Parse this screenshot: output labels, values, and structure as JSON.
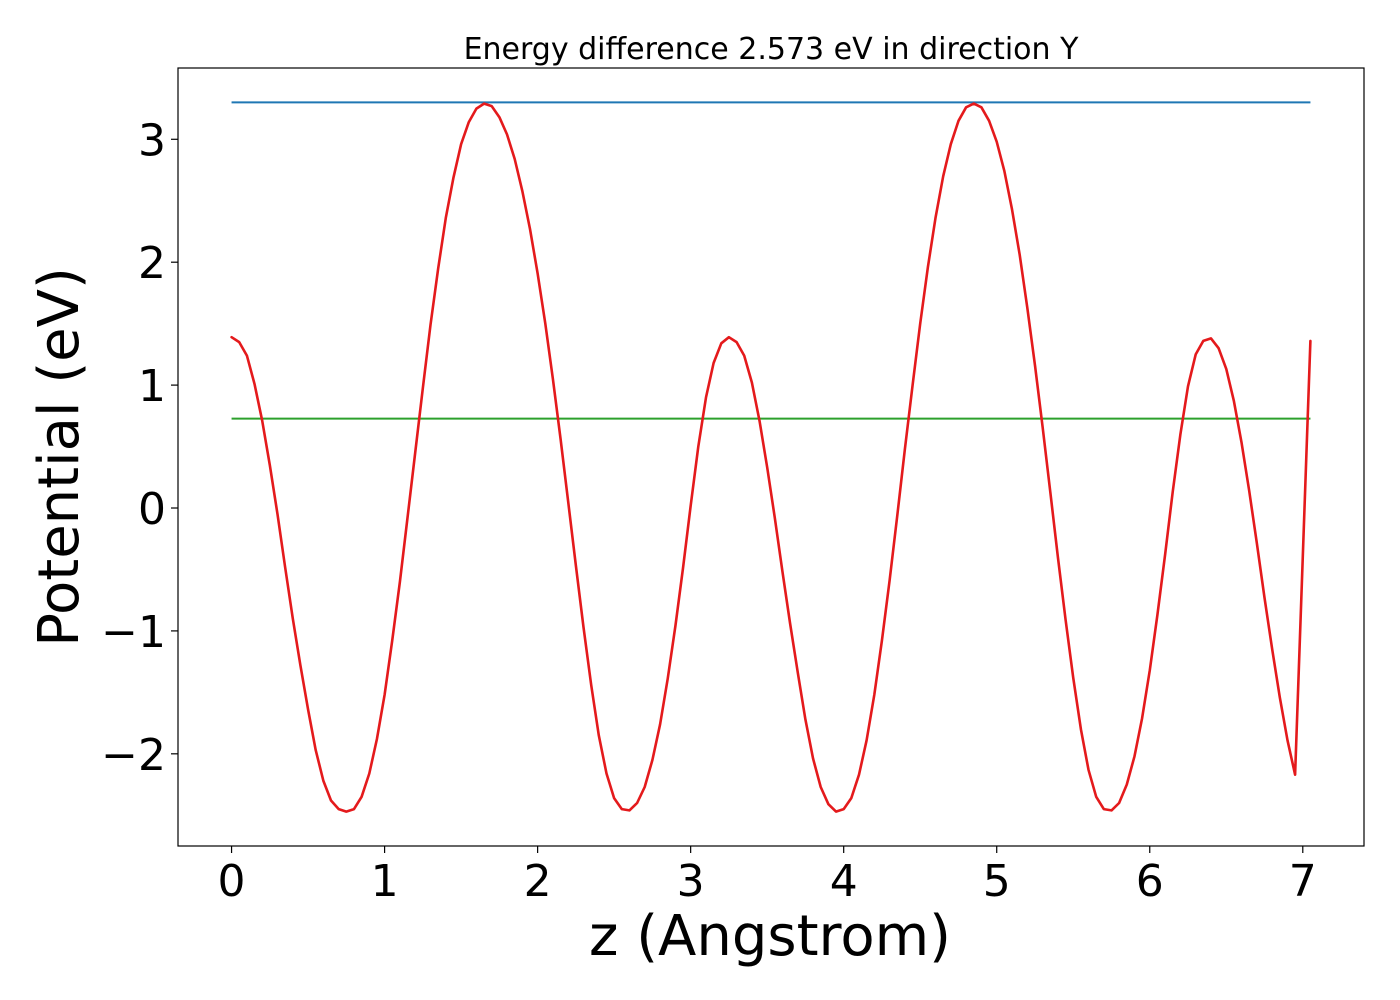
{
  "chart_data": {
    "type": "line",
    "title": "Energy difference 2.573 eV in direction Y",
    "xlabel": "z (Angstrom)",
    "ylabel": "Potential (eV)",
    "xlim": [
      -0.35,
      7.4
    ],
    "ylim": [
      -2.75,
      3.58
    ],
    "xticks": [
      0,
      1,
      2,
      3,
      4,
      5,
      6,
      7
    ],
    "xtick_labels": [
      "0",
      "1",
      "2",
      "3",
      "4",
      "5",
      "6",
      "7"
    ],
    "yticks": [
      -2,
      -1,
      0,
      1,
      2,
      3
    ],
    "ytick_labels": [
      "−2",
      "−1",
      "0",
      "1",
      "2",
      "3"
    ],
    "grid": false,
    "legend": "none",
    "colors": {
      "potential": "#e41a1c",
      "max_line": "#1f77b4",
      "avg_line": "#2ca02c"
    },
    "series": [
      {
        "values": [
          {
            "x": 0.0,
            "y": 1.39
          },
          {
            "x": 0.05,
            "y": 1.35
          },
          {
            "x": 0.1,
            "y": 1.24
          },
          {
            "x": 0.15,
            "y": 1.01
          },
          {
            "x": 0.2,
            "y": 0.71
          },
          {
            "x": 0.25,
            "y": 0.35
          },
          {
            "x": 0.3,
            "y": -0.05
          },
          {
            "x": 0.35,
            "y": -0.48
          },
          {
            "x": 0.4,
            "y": -0.9
          },
          {
            "x": 0.45,
            "y": -1.28
          },
          {
            "x": 0.5,
            "y": -1.64
          },
          {
            "x": 0.55,
            "y": -1.97
          },
          {
            "x": 0.6,
            "y": -2.22
          },
          {
            "x": 0.65,
            "y": -2.38
          },
          {
            "x": 0.7,
            "y": -2.45
          },
          {
            "x": 0.75,
            "y": -2.47
          },
          {
            "x": 0.8,
            "y": -2.45
          },
          {
            "x": 0.85,
            "y": -2.35
          },
          {
            "x": 0.9,
            "y": -2.16
          },
          {
            "x": 0.95,
            "y": -1.88
          },
          {
            "x": 1.0,
            "y": -1.52
          },
          {
            "x": 1.05,
            "y": -1.08
          },
          {
            "x": 1.1,
            "y": -0.6
          },
          {
            "x": 1.15,
            "y": -0.08
          },
          {
            "x": 1.2,
            "y": 0.45
          },
          {
            "x": 1.25,
            "y": 0.98
          },
          {
            "x": 1.3,
            "y": 1.49
          },
          {
            "x": 1.35,
            "y": 1.95
          },
          {
            "x": 1.4,
            "y": 2.36
          },
          {
            "x": 1.45,
            "y": 2.69
          },
          {
            "x": 1.5,
            "y": 2.96
          },
          {
            "x": 1.55,
            "y": 3.14
          },
          {
            "x": 1.6,
            "y": 3.25
          },
          {
            "x": 1.65,
            "y": 3.29
          },
          {
            "x": 1.7,
            "y": 3.27
          },
          {
            "x": 1.75,
            "y": 3.18
          },
          {
            "x": 1.8,
            "y": 3.04
          },
          {
            "x": 1.85,
            "y": 2.84
          },
          {
            "x": 1.9,
            "y": 2.58
          },
          {
            "x": 1.95,
            "y": 2.27
          },
          {
            "x": 2.0,
            "y": 1.91
          },
          {
            "x": 2.05,
            "y": 1.5
          },
          {
            "x": 2.1,
            "y": 1.05
          },
          {
            "x": 2.15,
            "y": 0.56
          },
          {
            "x": 2.2,
            "y": 0.05
          },
          {
            "x": 2.25,
            "y": -0.47
          },
          {
            "x": 2.3,
            "y": -0.97
          },
          {
            "x": 2.35,
            "y": -1.44
          },
          {
            "x": 2.4,
            "y": -1.85
          },
          {
            "x": 2.45,
            "y": -2.16
          },
          {
            "x": 2.5,
            "y": -2.36
          },
          {
            "x": 2.55,
            "y": -2.45
          },
          {
            "x": 2.6,
            "y": -2.46
          },
          {
            "x": 2.65,
            "y": -2.4
          },
          {
            "x": 2.7,
            "y": -2.27
          },
          {
            "x": 2.75,
            "y": -2.05
          },
          {
            "x": 2.8,
            "y": -1.76
          },
          {
            "x": 2.85,
            "y": -1.39
          },
          {
            "x": 2.9,
            "y": -0.96
          },
          {
            "x": 2.95,
            "y": -0.49
          },
          {
            "x": 3.0,
            "y": 0.02
          },
          {
            "x": 3.05,
            "y": 0.5
          },
          {
            "x": 3.1,
            "y": 0.9
          },
          {
            "x": 3.15,
            "y": 1.18
          },
          {
            "x": 3.2,
            "y": 1.34
          },
          {
            "x": 3.25,
            "y": 1.39
          },
          {
            "x": 3.3,
            "y": 1.35
          },
          {
            "x": 3.35,
            "y": 1.24
          },
          {
            "x": 3.4,
            "y": 1.02
          },
          {
            "x": 3.45,
            "y": 0.71
          },
          {
            "x": 3.5,
            "y": 0.33
          },
          {
            "x": 3.55,
            "y": -0.08
          },
          {
            "x": 3.6,
            "y": -0.52
          },
          {
            "x": 3.65,
            "y": -0.94
          },
          {
            "x": 3.7,
            "y": -1.34
          },
          {
            "x": 3.75,
            "y": -1.72
          },
          {
            "x": 3.8,
            "y": -2.04
          },
          {
            "x": 3.85,
            "y": -2.27
          },
          {
            "x": 3.9,
            "y": -2.41
          },
          {
            "x": 3.95,
            "y": -2.47
          },
          {
            "x": 4.0,
            "y": -2.45
          },
          {
            "x": 4.05,
            "y": -2.36
          },
          {
            "x": 4.1,
            "y": -2.17
          },
          {
            "x": 4.15,
            "y": -1.89
          },
          {
            "x": 4.2,
            "y": -1.52
          },
          {
            "x": 4.25,
            "y": -1.08
          },
          {
            "x": 4.3,
            "y": -0.59
          },
          {
            "x": 4.35,
            "y": -0.06
          },
          {
            "x": 4.4,
            "y": 0.48
          },
          {
            "x": 4.45,
            "y": 1.0
          },
          {
            "x": 4.5,
            "y": 1.5
          },
          {
            "x": 4.55,
            "y": 1.96
          },
          {
            "x": 4.6,
            "y": 2.36
          },
          {
            "x": 4.65,
            "y": 2.7
          },
          {
            "x": 4.7,
            "y": 2.96
          },
          {
            "x": 4.75,
            "y": 3.15
          },
          {
            "x": 4.8,
            "y": 3.26
          },
          {
            "x": 4.85,
            "y": 3.29
          },
          {
            "x": 4.9,
            "y": 3.26
          },
          {
            "x": 4.95,
            "y": 3.15
          },
          {
            "x": 5.0,
            "y": 2.98
          },
          {
            "x": 5.05,
            "y": 2.74
          },
          {
            "x": 5.1,
            "y": 2.43
          },
          {
            "x": 5.15,
            "y": 2.06
          },
          {
            "x": 5.2,
            "y": 1.63
          },
          {
            "x": 5.25,
            "y": 1.16
          },
          {
            "x": 5.3,
            "y": 0.66
          },
          {
            "x": 5.35,
            "y": 0.13
          },
          {
            "x": 5.4,
            "y": -0.4
          },
          {
            "x": 5.45,
            "y": -0.91
          },
          {
            "x": 5.5,
            "y": -1.38
          },
          {
            "x": 5.55,
            "y": -1.8
          },
          {
            "x": 5.6,
            "y": -2.13
          },
          {
            "x": 5.65,
            "y": -2.35
          },
          {
            "x": 5.7,
            "y": -2.45
          },
          {
            "x": 5.75,
            "y": -2.46
          },
          {
            "x": 5.8,
            "y": -2.4
          },
          {
            "x": 5.85,
            "y": -2.25
          },
          {
            "x": 5.9,
            "y": -2.02
          },
          {
            "x": 5.95,
            "y": -1.71
          },
          {
            "x": 6.0,
            "y": -1.32
          },
          {
            "x": 6.05,
            "y": -0.87
          },
          {
            "x": 6.1,
            "y": -0.38
          },
          {
            "x": 6.15,
            "y": 0.13
          },
          {
            "x": 6.2,
            "y": 0.6
          },
          {
            "x": 6.25,
            "y": 0.99
          },
          {
            "x": 6.3,
            "y": 1.25
          },
          {
            "x": 6.35,
            "y": 1.36
          },
          {
            "x": 6.4,
            "y": 1.38
          },
          {
            "x": 6.45,
            "y": 1.3
          },
          {
            "x": 6.5,
            "y": 1.13
          },
          {
            "x": 6.55,
            "y": 0.87
          },
          {
            "x": 6.6,
            "y": 0.53
          },
          {
            "x": 6.65,
            "y": 0.14
          },
          {
            "x": 6.7,
            "y": -0.29
          },
          {
            "x": 6.75,
            "y": -0.73
          },
          {
            "x": 6.8,
            "y": -1.15
          },
          {
            "x": 6.85,
            "y": -1.54
          },
          {
            "x": 6.9,
            "y": -1.89
          },
          {
            "x": 6.95,
            "y": -2.17
          },
          {
            "x": 7.05,
            "y": 1.36
          }
        ]
      }
    ],
    "hlines": [
      {
        "y": 3.3,
        "x": [
          0,
          7.05
        ]
      },
      {
        "y": 0.727,
        "x": [
          0,
          7.05
        ]
      }
    ]
  }
}
